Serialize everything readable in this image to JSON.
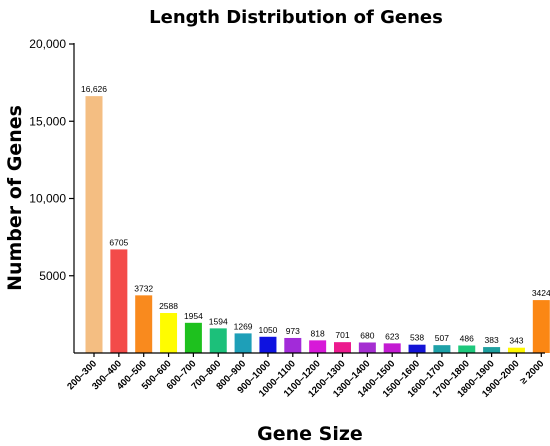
{
  "chart_data": {
    "type": "bar",
    "title": "Length Distribution of Genes",
    "xlabel": "Gene Size",
    "ylabel": "Number of Genes",
    "ylim": [
      0,
      20000
    ],
    "yticks": [
      {
        "value": 5000,
        "label": "5000"
      },
      {
        "value": 10000,
        "label": "10,000"
      },
      {
        "value": 15000,
        "label": "15,000"
      },
      {
        "value": 20000,
        "label": "20,000"
      }
    ],
    "grid": false,
    "categories": [
      "200–300",
      "300–400",
      "400–500",
      "500–600",
      "600–700",
      "700–800",
      "800–900",
      "900–1000",
      "1000–1100",
      "1100–1200",
      "1200–1300",
      "1300–1400",
      "1400–1500",
      "1500–1600",
      "1600–1700",
      "1700–1800",
      "1800–1900",
      "1900–2000",
      "≥ 2000"
    ],
    "values": [
      16626,
      6705,
      3732,
      2588,
      1954,
      1594,
      1269,
      1050,
      973,
      818,
      701,
      680,
      623,
      538,
      507,
      486,
      383,
      343,
      3424
    ],
    "value_labels": [
      "16,626",
      "6705",
      "3732",
      "2588",
      "1954",
      "1594",
      "1269",
      "1050",
      "973",
      "818",
      "701",
      "680",
      "623",
      "538",
      "507",
      "486",
      "383",
      "343",
      "3424"
    ],
    "colors": [
      "#F4BE82",
      "#F34B49",
      "#F98A1E",
      "#FFFC00",
      "#1EC11E",
      "#1CC07A",
      "#1E9FB8",
      "#0E12E0",
      "#A22BD9",
      "#D719D8",
      "#EC1A8E",
      "#A52ED1",
      "#C31BD2",
      "#1414D6",
      "#1EA1A8",
      "#1EC87C",
      "#1E9F9F",
      "#FFF700",
      "#FB8714"
    ]
  }
}
